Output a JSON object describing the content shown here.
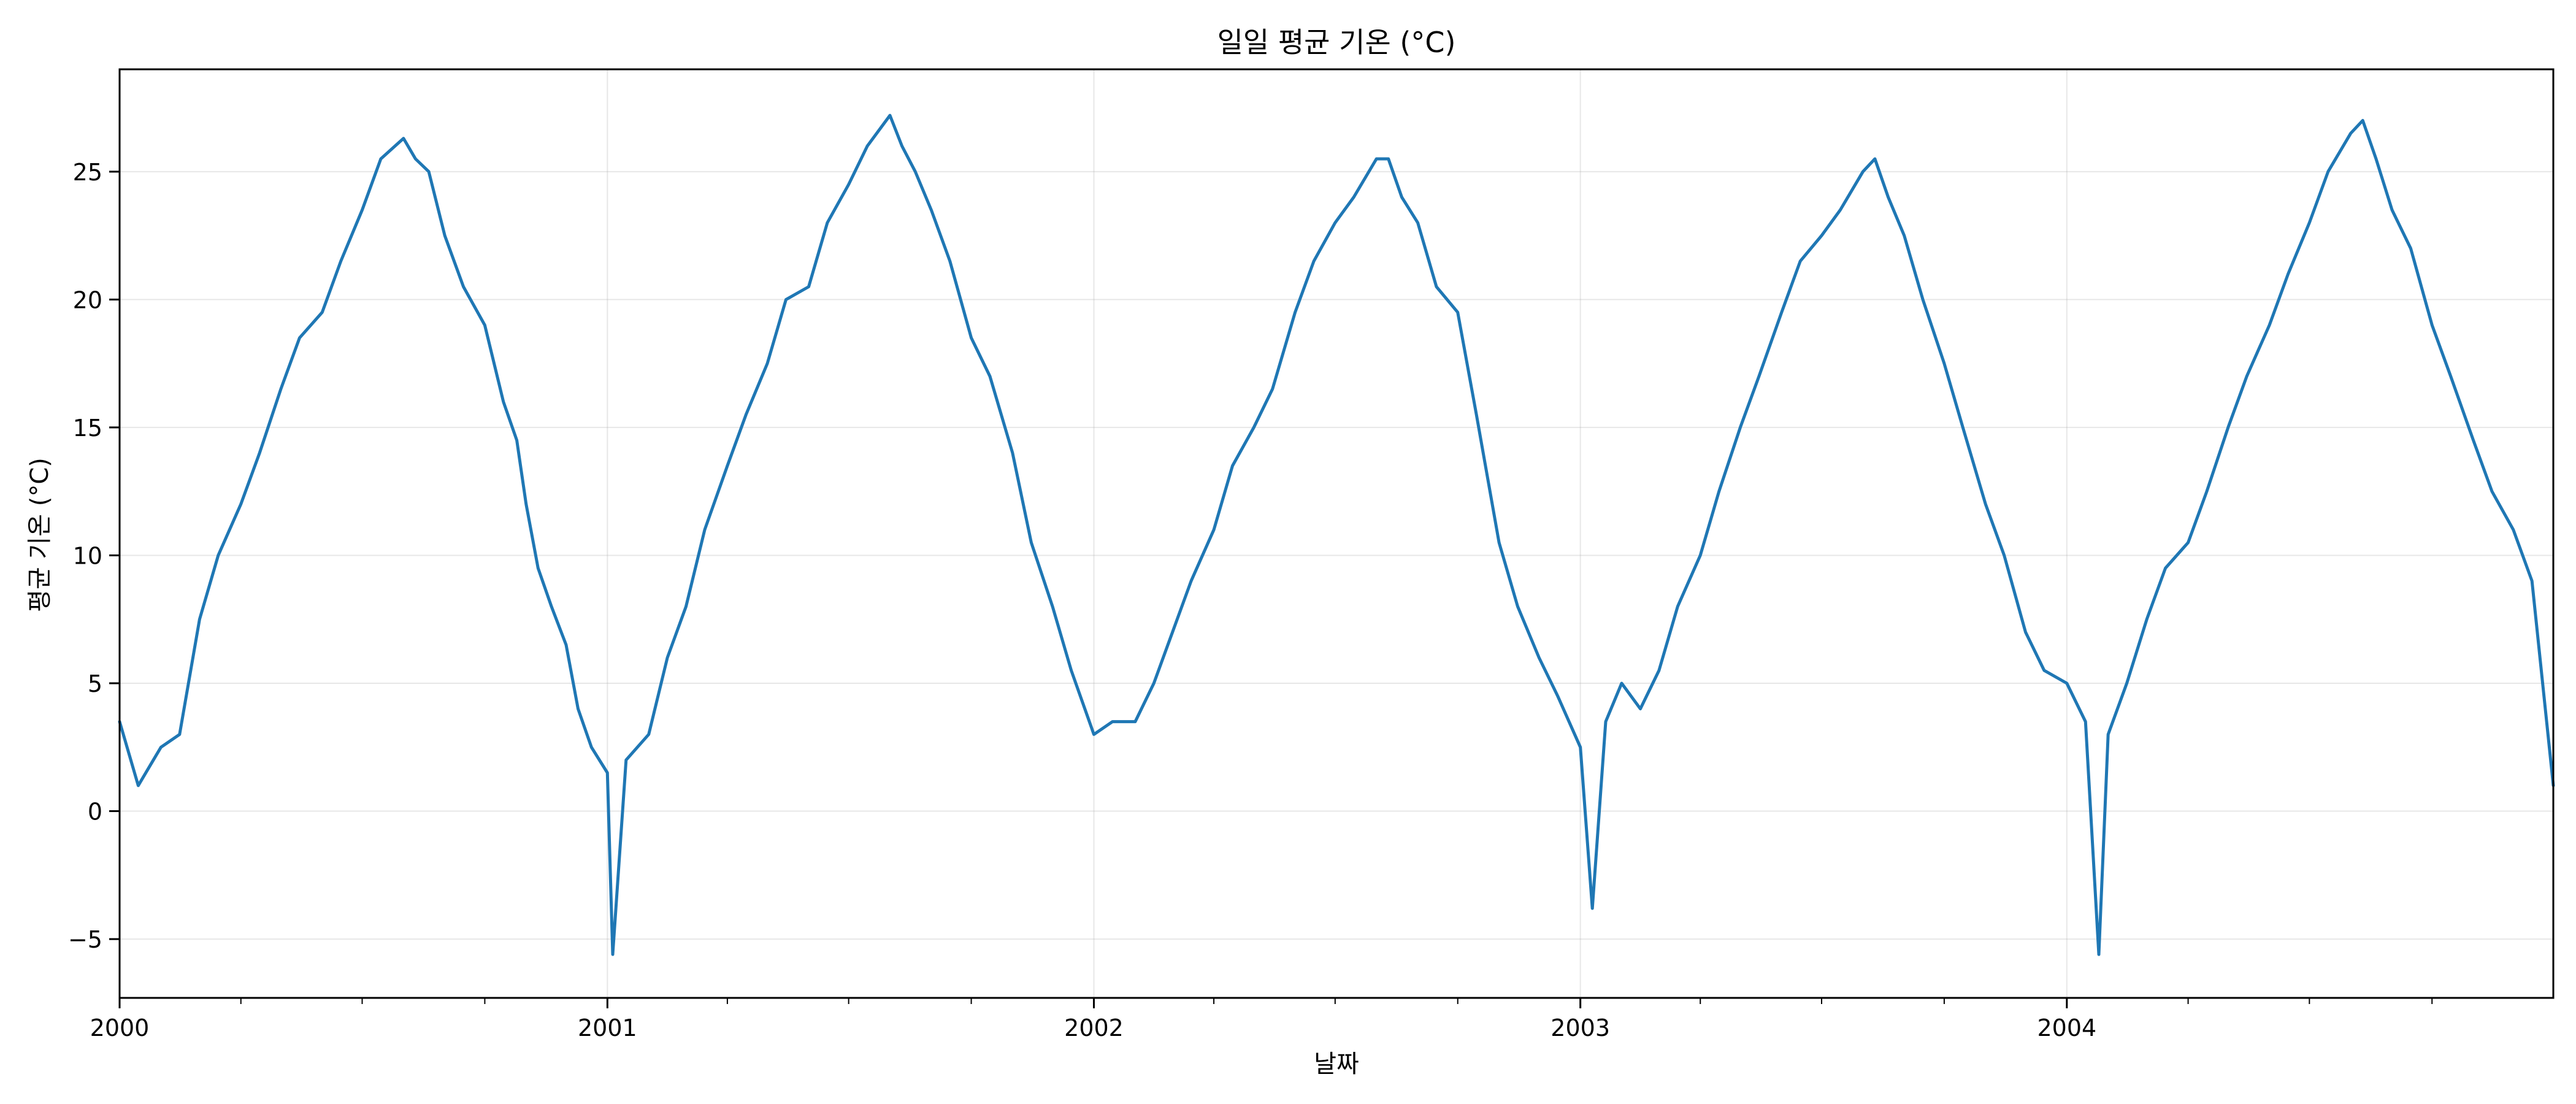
{
  "chart_data": {
    "type": "line",
    "title": "일일 평균 기온 (°C)",
    "xlabel": "날짜",
    "ylabel": "평균 기온 (°C)",
    "xlim": [
      "2000-01-01",
      "2004-12-31"
    ],
    "ylim": [
      -7.3,
      29.0
    ],
    "x_major_ticks": [
      "2000-01-01",
      "2001-01-01",
      "2002-01-01",
      "2003-01-01",
      "2004-01-01"
    ],
    "x_major_tick_labels": [
      "2000",
      "2001",
      "2002",
      "2003",
      "2004"
    ],
    "y_ticks": [
      -5,
      0,
      5,
      10,
      15,
      20,
      25
    ],
    "y_tick_labels": [
      "−5",
      "0",
      "5",
      "10",
      "15",
      "20",
      "25"
    ],
    "grid": true,
    "line_color": "#1f77b4",
    "series": [
      {
        "x": [
          "2000-01-01",
          "2000-01-15",
          "2000-02-01",
          "2000-02-15",
          "2000-03-01",
          "2000-03-15",
          "2000-04-01",
          "2000-04-15",
          "2000-05-01",
          "2000-05-15",
          "2000-06-01",
          "2000-06-15",
          "2000-07-01",
          "2000-07-15",
          "2000-08-01",
          "2000-08-10",
          "2000-08-20",
          "2000-09-01",
          "2000-09-15",
          "2000-10-01",
          "2000-10-15",
          "2000-10-25",
          "2000-11-01",
          "2000-11-10",
          "2000-11-20",
          "2000-12-01",
          "2000-12-10",
          "2000-12-20",
          "2001-01-01",
          "2001-01-05",
          "2001-01-15",
          "2001-02-01",
          "2001-02-15",
          "2001-03-01",
          "2001-03-15",
          "2001-04-01",
          "2001-04-15",
          "2001-05-01",
          "2001-05-15",
          "2001-06-01",
          "2001-06-15",
          "2001-07-01",
          "2001-07-15",
          "2001-08-01",
          "2001-08-10",
          "2001-08-20",
          "2001-09-01",
          "2001-09-15",
          "2001-10-01",
          "2001-10-15",
          "2001-11-01",
          "2001-11-15",
          "2001-12-01",
          "2001-12-15",
          "2002-01-01",
          "2002-01-15",
          "2002-02-01",
          "2002-02-15",
          "2002-03-01",
          "2002-03-15",
          "2002-04-01",
          "2002-04-15",
          "2002-05-01",
          "2002-05-15",
          "2002-06-01",
          "2002-06-15",
          "2002-07-01",
          "2002-07-15",
          "2002-08-01",
          "2002-08-10",
          "2002-08-20",
          "2002-09-01",
          "2002-09-15",
          "2002-10-01",
          "2002-10-15",
          "2002-11-01",
          "2002-11-15",
          "2002-12-01",
          "2002-12-15",
          "2003-01-01",
          "2003-01-10",
          "2003-01-20",
          "2003-02-01",
          "2003-02-15",
          "2003-03-01",
          "2003-03-15",
          "2003-04-01",
          "2003-04-15",
          "2003-05-01",
          "2003-05-15",
          "2003-06-01",
          "2003-06-15",
          "2003-07-01",
          "2003-07-15",
          "2003-08-01",
          "2003-08-10",
          "2003-08-20",
          "2003-09-01",
          "2003-09-15",
          "2003-10-01",
          "2003-10-15",
          "2003-11-01",
          "2003-11-15",
          "2003-12-01",
          "2003-12-15",
          "2004-01-01",
          "2004-01-15",
          "2004-01-25",
          "2004-02-01",
          "2004-02-15",
          "2004-03-01",
          "2004-03-15",
          "2004-04-01",
          "2004-04-15",
          "2004-05-01",
          "2004-05-15",
          "2004-06-01",
          "2004-06-15",
          "2004-07-01",
          "2004-07-15",
          "2004-08-01",
          "2004-08-10",
          "2004-08-20",
          "2004-09-01",
          "2004-09-15",
          "2004-10-01",
          "2004-10-15",
          "2004-11-01",
          "2004-11-15",
          "2004-12-01",
          "2004-12-15",
          "2004-12-31"
        ],
        "y": [
          3.5,
          1.0,
          2.5,
          3.0,
          7.5,
          10.0,
          12.0,
          14.0,
          16.5,
          18.5,
          19.5,
          21.5,
          23.5,
          25.5,
          26.3,
          25.5,
          25.0,
          22.5,
          20.5,
          19.0,
          16.0,
          14.5,
          12.0,
          9.5,
          8.0,
          6.5,
          4.0,
          2.5,
          1.5,
          -5.6,
          2.0,
          3.0,
          6.0,
          8.0,
          11.0,
          13.5,
          15.5,
          17.5,
          20.0,
          20.5,
          23.0,
          24.5,
          26.0,
          27.2,
          26.0,
          25.0,
          23.5,
          21.5,
          18.5,
          17.0,
          14.0,
          10.5,
          8.0,
          5.5,
          3.0,
          3.5,
          3.5,
          5.0,
          7.0,
          9.0,
          11.0,
          13.5,
          15.0,
          16.5,
          19.5,
          21.5,
          23.0,
          24.0,
          25.5,
          25.5,
          24.0,
          23.0,
          20.5,
          19.5,
          15.5,
          10.5,
          8.0,
          6.0,
          4.5,
          2.5,
          -3.8,
          3.5,
          5.0,
          4.0,
          5.5,
          8.0,
          10.0,
          12.5,
          15.0,
          17.0,
          19.5,
          21.5,
          22.5,
          23.5,
          25.0,
          25.5,
          24.0,
          22.5,
          20.0,
          17.5,
          15.0,
          12.0,
          10.0,
          7.0,
          5.5,
          5.0,
          3.5,
          -5.6,
          3.0,
          5.0,
          7.5,
          9.5,
          10.5,
          12.5,
          15.0,
          17.0,
          19.0,
          21.0,
          23.0,
          25.0,
          26.5,
          27.0,
          25.5,
          23.5,
          22.0,
          19.0,
          17.0,
          14.5,
          12.5,
          11.0,
          9.0,
          1.0
        ]
      }
    ]
  }
}
